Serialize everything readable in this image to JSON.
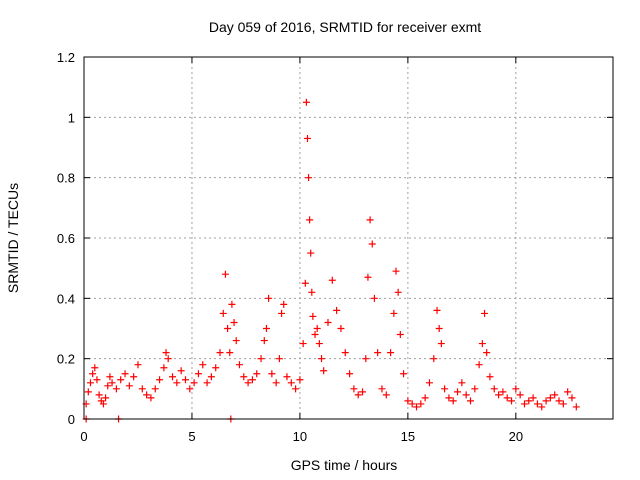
{
  "chart_data": {
    "type": "scatter",
    "title": "Day 059 of 2016, SRMTID for receiver exmt",
    "xlabel": "GPS time / hours",
    "ylabel": "SRMTID / TECUs",
    "xlim": [
      0,
      24.5
    ],
    "ylim": [
      0,
      1.2
    ],
    "xticks": [
      0,
      5,
      10,
      15,
      20
    ],
    "xtick_labels": [
      "0",
      "5",
      "10",
      "15",
      "20"
    ],
    "yticks": [
      0,
      0.2,
      0.4,
      0.6,
      0.8,
      1,
      1.2
    ],
    "ytick_labels": [
      "0",
      "0.2",
      "0.4",
      "0.6",
      "0.8",
      "1",
      "1.2"
    ],
    "grid": true,
    "marker": "+",
    "marker_color": "#ff0000",
    "series": [
      {
        "name": "SRMTID",
        "x": [
          0.1,
          0.2,
          0.3,
          0.4,
          0.5,
          0.6,
          0.7,
          0.8,
          0.9,
          1.0,
          1.1,
          1.2,
          1.3,
          1.5,
          1.7,
          1.9,
          2.1,
          2.3,
          2.5,
          2.7,
          2.9,
          3.1,
          3.3,
          3.5,
          3.7,
          3.8,
          3.9,
          4.1,
          4.3,
          4.5,
          4.7,
          4.9,
          5.1,
          5.3,
          5.5,
          5.7,
          5.9,
          6.1,
          6.3,
          6.45,
          6.55,
          6.65,
          6.75,
          6.85,
          6.95,
          7.05,
          7.2,
          7.4,
          7.6,
          7.8,
          8.0,
          8.2,
          8.35,
          8.45,
          8.55,
          8.7,
          8.9,
          9.05,
          9.15,
          9.25,
          9.4,
          9.6,
          9.8,
          10.0,
          10.15,
          10.25,
          10.3,
          10.35,
          10.4,
          10.45,
          10.5,
          10.55,
          10.6,
          10.7,
          10.8,
          10.9,
          11.0,
          11.1,
          11.3,
          11.5,
          11.7,
          11.9,
          12.1,
          12.3,
          12.5,
          12.7,
          12.9,
          13.05,
          13.15,
          13.25,
          13.35,
          13.45,
          13.6,
          13.8,
          14.0,
          14.2,
          14.35,
          14.45,
          14.55,
          14.65,
          14.8,
          15.0,
          15.2,
          15.4,
          15.6,
          15.8,
          16.0,
          16.2,
          16.35,
          16.45,
          16.55,
          16.7,
          16.9,
          17.1,
          17.3,
          17.5,
          17.7,
          17.9,
          18.1,
          18.3,
          18.45,
          18.55,
          18.65,
          18.8,
          19.0,
          19.2,
          19.4,
          19.6,
          19.8,
          20.0,
          20.2,
          20.4,
          20.6,
          20.8,
          21.0,
          21.2,
          21.4,
          21.6,
          21.8,
          22.0,
          22.2,
          22.4,
          22.6,
          22.8,
          0.1,
          1.6,
          6.8
        ],
        "y": [
          0.05,
          0.09,
          0.12,
          0.15,
          0.17,
          0.13,
          0.08,
          0.06,
          0.05,
          0.07,
          0.11,
          0.14,
          0.12,
          0.1,
          0.13,
          0.15,
          0.11,
          0.14,
          0.18,
          0.1,
          0.08,
          0.07,
          0.1,
          0.13,
          0.17,
          0.22,
          0.2,
          0.14,
          0.12,
          0.16,
          0.13,
          0.1,
          0.12,
          0.15,
          0.18,
          0.12,
          0.14,
          0.17,
          0.22,
          0.35,
          0.48,
          0.3,
          0.22,
          0.38,
          0.32,
          0.26,
          0.18,
          0.14,
          0.12,
          0.13,
          0.15,
          0.2,
          0.26,
          0.3,
          0.4,
          0.15,
          0.12,
          0.2,
          0.35,
          0.38,
          0.14,
          0.12,
          0.1,
          0.13,
          0.25,
          0.45,
          1.05,
          0.93,
          0.8,
          0.66,
          0.55,
          0.42,
          0.34,
          0.28,
          0.3,
          0.25,
          0.2,
          0.16,
          0.32,
          0.46,
          0.36,
          0.3,
          0.22,
          0.15,
          0.1,
          0.08,
          0.09,
          0.2,
          0.47,
          0.66,
          0.58,
          0.4,
          0.22,
          0.1,
          0.08,
          0.22,
          0.35,
          0.49,
          0.42,
          0.28,
          0.15,
          0.06,
          0.05,
          0.04,
          0.05,
          0.07,
          0.12,
          0.2,
          0.36,
          0.3,
          0.25,
          0.1,
          0.07,
          0.06,
          0.09,
          0.12,
          0.08,
          0.06,
          0.1,
          0.18,
          0.25,
          0.35,
          0.22,
          0.14,
          0.1,
          0.08,
          0.09,
          0.07,
          0.06,
          0.1,
          0.08,
          0.05,
          0.06,
          0.07,
          0.05,
          0.04,
          0.06,
          0.07,
          0.08,
          0.06,
          0.05,
          0.09,
          0.07,
          0.04,
          0.0,
          0.0,
          0.0
        ]
      }
    ]
  }
}
